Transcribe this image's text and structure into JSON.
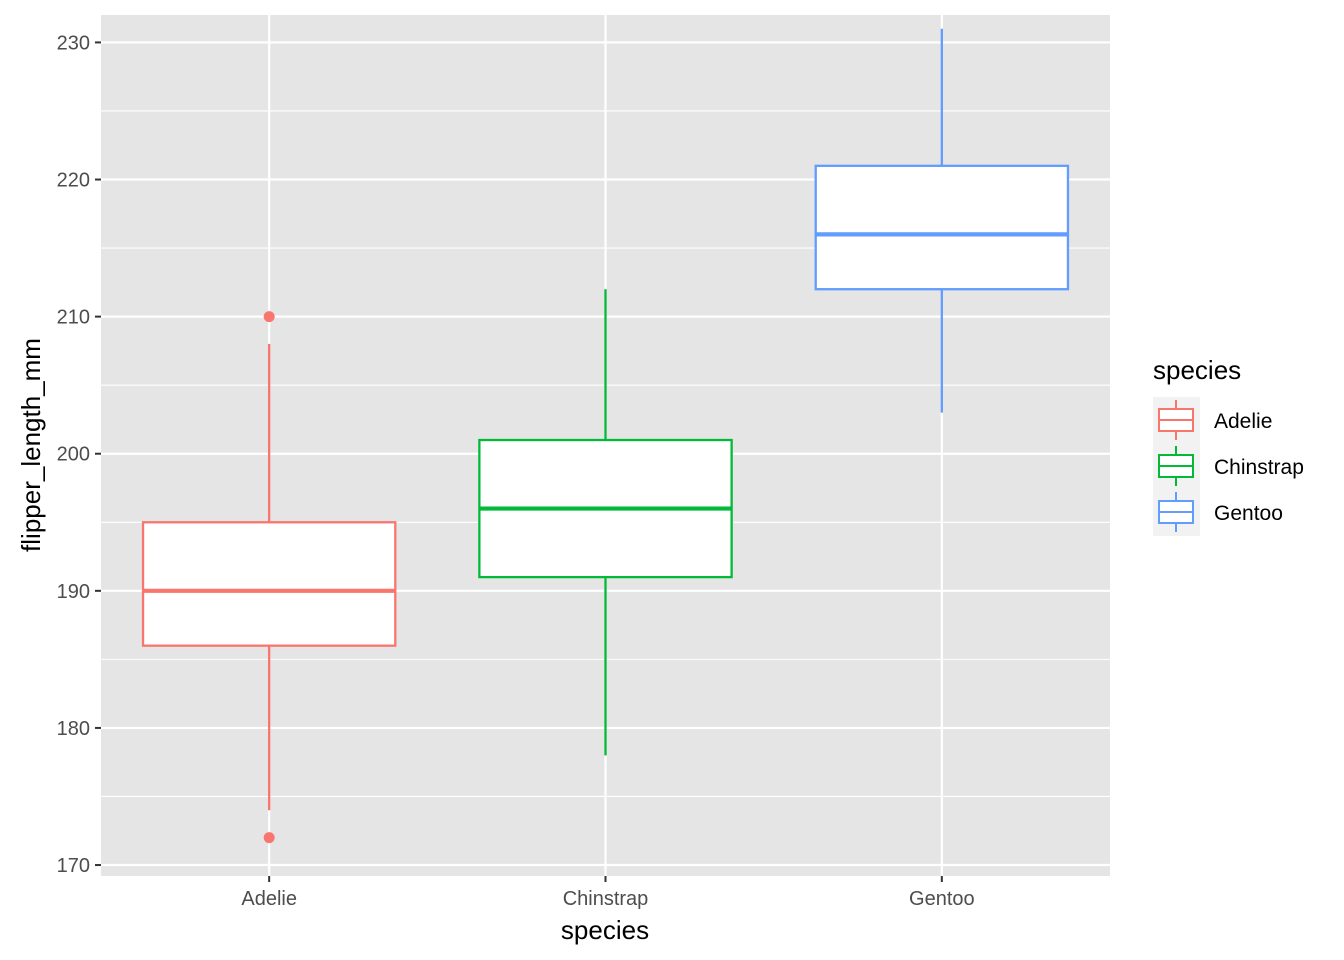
{
  "chart_data": {
    "type": "boxplot",
    "xlabel": "species",
    "ylabel": "flipper_length_mm",
    "ylim": [
      169.2,
      232.0
    ],
    "y_ticks": [
      170,
      180,
      190,
      200,
      210,
      220,
      230
    ],
    "y_tick_labels": [
      "170",
      "180",
      "190",
      "200",
      "210",
      "220",
      "230"
    ],
    "categories": [
      "Adelie",
      "Chinstrap",
      "Gentoo"
    ],
    "grid": true,
    "background": "#e5e5e5",
    "legend": {
      "title": "species",
      "position": "right",
      "entries": [
        "Adelie",
        "Chinstrap",
        "Gentoo"
      ]
    },
    "boxes": [
      {
        "name": "Adelie",
        "color": "#f8766d",
        "lower_whisker": 174,
        "q1": 186,
        "median": 190,
        "q3": 195,
        "upper_whisker": 208,
        "outliers": [
          172,
          210
        ]
      },
      {
        "name": "Chinstrap",
        "color": "#00ba38",
        "lower_whisker": 178,
        "q1": 191,
        "median": 196,
        "q3": 201,
        "upper_whisker": 212,
        "outliers": []
      },
      {
        "name": "Gentoo",
        "color": "#619cff",
        "lower_whisker": 203,
        "q1": 212,
        "median": 216,
        "q3": 221,
        "upper_whisker": 231,
        "outliers": []
      }
    ]
  }
}
